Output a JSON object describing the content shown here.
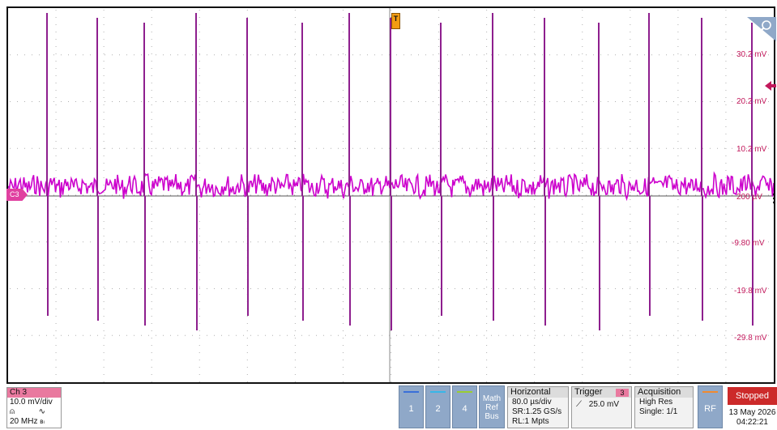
{
  "display": {
    "trigger_marker": "T",
    "channel_marker": "C3",
    "y_labels": [
      "30.2 mV",
      "20.2 mV",
      "10.2 mV",
      "200 µV",
      "-9.80 mV",
      "-19.8 mV",
      "-29.8 mV"
    ],
    "trace_color": "#cc00cc",
    "grid_color": "#b0b0b0"
  },
  "channel3": {
    "title": "Ch 3",
    "scale": "10.0 mV/div",
    "bandwidth": "20 MHz",
    "color": "#e9799f"
  },
  "softkeys": [
    {
      "label": "1",
      "color": "#3a6fd8"
    },
    {
      "label": "2",
      "color": "#37b6e8"
    },
    {
      "label": "4",
      "color": "#9acd32"
    }
  ],
  "math_ref_bus": [
    "Math",
    "Ref",
    "Bus"
  ],
  "horizontal": {
    "title": "Horizontal",
    "scale": "80.0 µs/div",
    "sample_rate": "SR:1.25 GS/s",
    "record_length": "RL:1 Mpts"
  },
  "trigger": {
    "title": "Trigger",
    "source": "3",
    "level": "25.0 mV"
  },
  "acquisition": {
    "title": "Acquisition",
    "mode": "High Res",
    "count": "Single: 1/1"
  },
  "rf": {
    "label": "RF"
  },
  "status": {
    "run_state": "Stopped",
    "date": "13 May 2026",
    "time": "04:22:21",
    "stopped_color": "#cc2a2a"
  }
}
